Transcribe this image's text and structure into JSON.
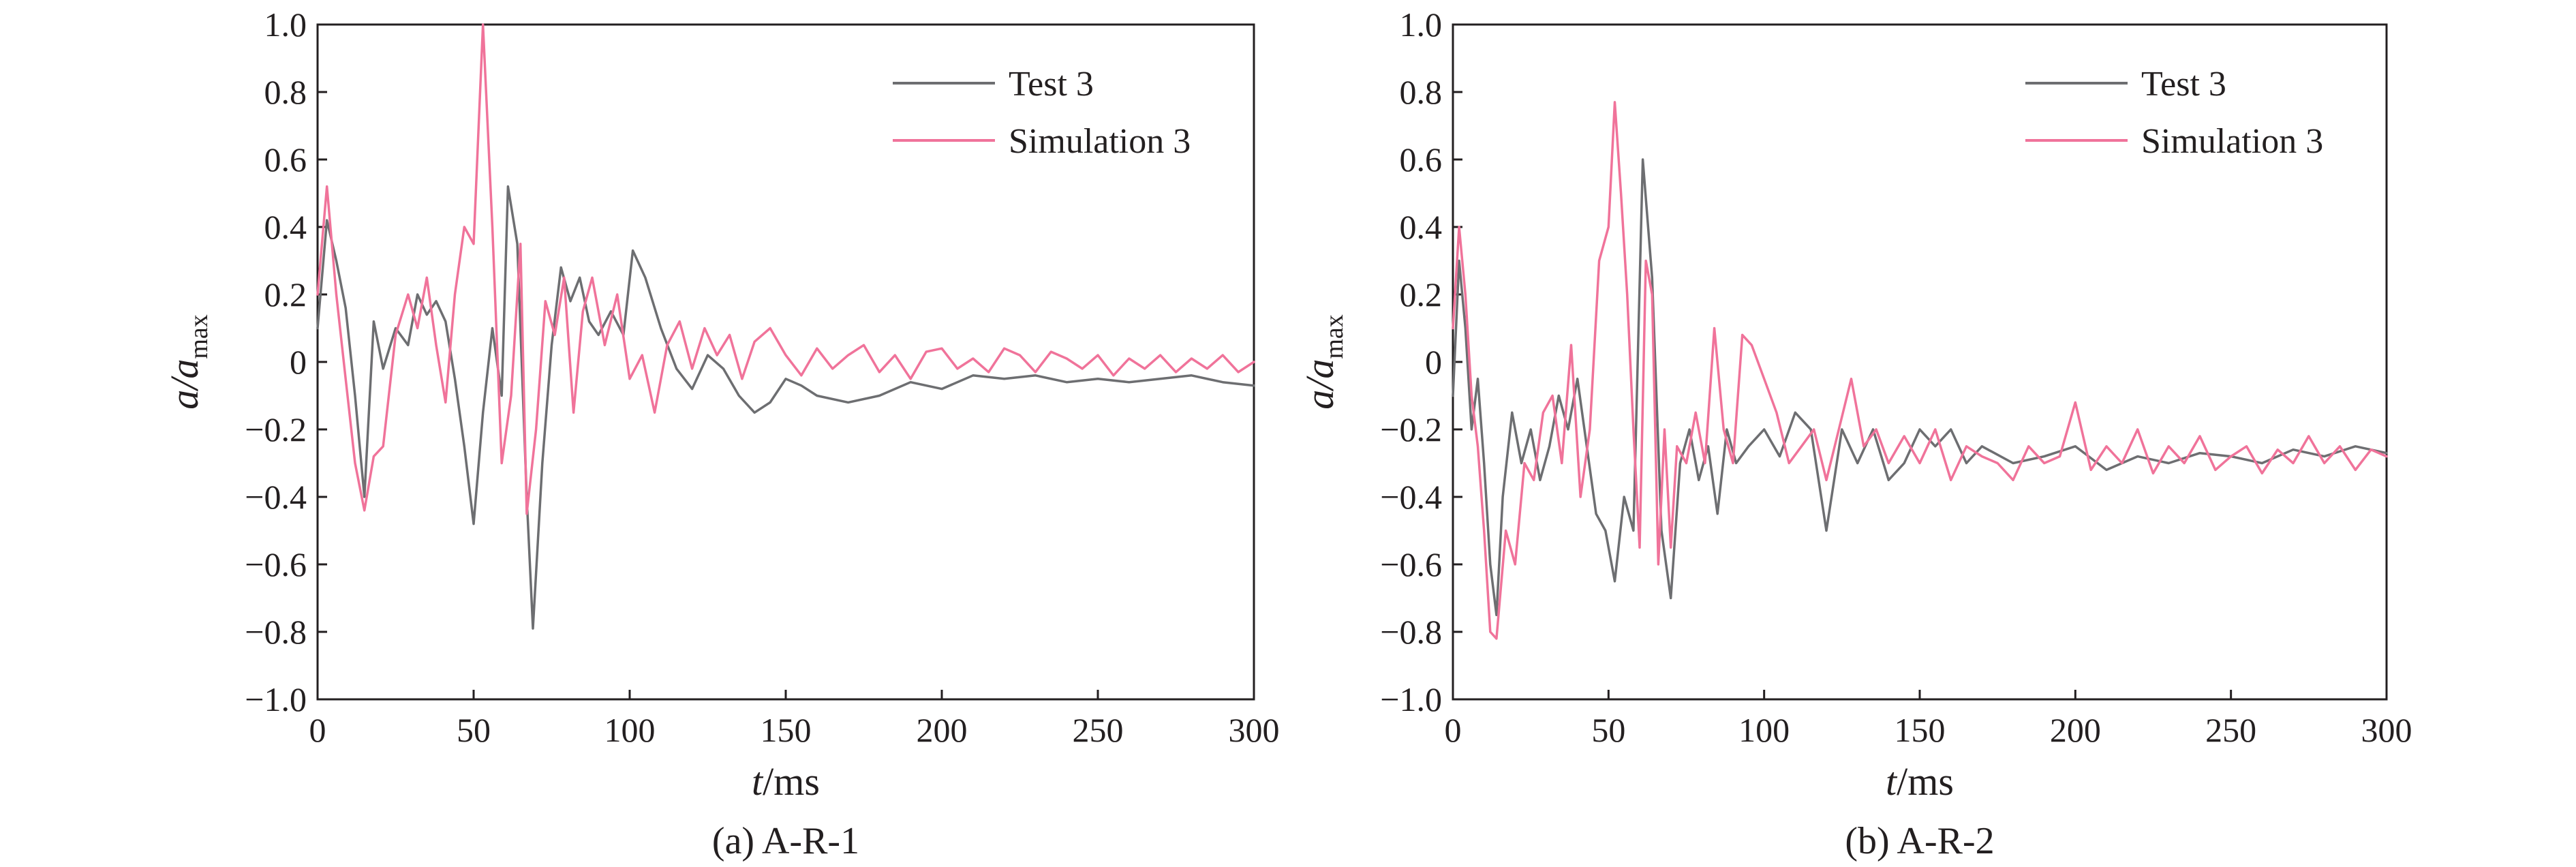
{
  "figure": {
    "panels": [
      {
        "caption": "(a) A-R-1",
        "ylabel_main": "a/a",
        "ylabel_sub": "max",
        "xlabel_main": "t",
        "xlabel_unit": "/ms"
      },
      {
        "caption": "(b) A-R-2",
        "ylabel_main": "a/a",
        "ylabel_sub": "max",
        "xlabel_main": "t",
        "xlabel_unit": "/ms"
      }
    ]
  },
  "chart_data": [
    {
      "type": "line",
      "title": "(a) A-R-1",
      "xlabel": "t/ms",
      "ylabel": "a/a_max",
      "xlim": [
        0,
        300
      ],
      "ylim": [
        -1.0,
        1.0
      ],
      "xticks": [
        "0",
        "50",
        "100",
        "150",
        "200",
        "250",
        "300"
      ],
      "yticks": [
        "1.0",
        "0.8",
        "0.6",
        "0.4",
        "0.2",
        "0",
        "−0.2",
        "−0.4",
        "−0.6",
        "−0.8",
        "−1.0"
      ],
      "grid": false,
      "legend_position": "top-right",
      "series": [
        {
          "name": "Test 3",
          "color": "#6d6e71",
          "x": [
            0,
            3,
            6,
            9,
            12,
            15,
            18,
            21,
            25,
            29,
            32,
            35,
            38,
            41,
            44,
            47,
            50,
            53,
            56,
            59,
            61,
            64,
            67,
            69,
            72,
            75,
            78,
            81,
            84,
            87,
            90,
            94,
            98,
            101,
            105,
            110,
            115,
            120,
            125,
            130,
            135,
            140,
            145,
            150,
            155,
            160,
            170,
            180,
            190,
            200,
            210,
            220,
            230,
            240,
            250,
            260,
            270,
            280,
            290,
            300
          ],
          "y": [
            0.1,
            0.42,
            0.3,
            0.16,
            -0.1,
            -0.4,
            0.12,
            -0.02,
            0.1,
            0.05,
            0.2,
            0.14,
            0.18,
            0.12,
            -0.05,
            -0.25,
            -0.48,
            -0.15,
            0.1,
            -0.1,
            0.52,
            0.35,
            -0.4,
            -0.79,
            -0.3,
            0.05,
            0.28,
            0.18,
            0.25,
            0.12,
            0.08,
            0.15,
            0.08,
            0.33,
            0.25,
            0.1,
            -0.02,
            -0.08,
            0.02,
            -0.02,
            -0.1,
            -0.15,
            -0.12,
            -0.05,
            -0.07,
            -0.1,
            -0.12,
            -0.1,
            -0.06,
            -0.08,
            -0.04,
            -0.05,
            -0.04,
            -0.06,
            -0.05,
            -0.06,
            -0.05,
            -0.04,
            -0.06,
            -0.07
          ]
        },
        {
          "name": "Simulation 3",
          "color": "#f0739a",
          "x": [
            0,
            3,
            6,
            9,
            12,
            15,
            18,
            21,
            25,
            29,
            32,
            35,
            38,
            41,
            44,
            47,
            50,
            53,
            56,
            59,
            62,
            65,
            67,
            70,
            73,
            76,
            79,
            82,
            85,
            88,
            92,
            96,
            100,
            104,
            108,
            112,
            116,
            120,
            124,
            128,
            132,
            136,
            140,
            145,
            150,
            155,
            160,
            165,
            170,
            175,
            180,
            185,
            190,
            195,
            200,
            205,
            210,
            215,
            220,
            225,
            230,
            235,
            240,
            245,
            250,
            255,
            260,
            265,
            270,
            275,
            280,
            285,
            290,
            295,
            300
          ],
          "y": [
            0.2,
            0.52,
            0.2,
            -0.05,
            -0.3,
            -0.44,
            -0.28,
            -0.25,
            0.08,
            0.2,
            0.1,
            0.25,
            0.05,
            -0.12,
            0.2,
            0.4,
            0.35,
            1.0,
            0.4,
            -0.3,
            -0.1,
            0.35,
            -0.45,
            -0.2,
            0.18,
            0.08,
            0.25,
            -0.15,
            0.15,
            0.25,
            0.05,
            0.2,
            -0.05,
            0.02,
            -0.15,
            0.05,
            0.12,
            -0.02,
            0.1,
            0.02,
            0.08,
            -0.05,
            0.06,
            0.1,
            0.02,
            -0.04,
            0.04,
            -0.02,
            0.02,
            0.05,
            -0.03,
            0.02,
            -0.05,
            0.03,
            0.04,
            -0.02,
            0.01,
            -0.03,
            0.04,
            0.02,
            -0.03,
            0.03,
            0.01,
            -0.02,
            0.02,
            -0.04,
            0.01,
            -0.02,
            0.02,
            -0.03,
            0.01,
            -0.02,
            0.02,
            -0.03,
            0.0
          ]
        }
      ]
    },
    {
      "type": "line",
      "title": "(b) A-R-2",
      "xlabel": "t/ms",
      "ylabel": "a/a_max",
      "xlim": [
        0,
        300
      ],
      "ylim": [
        -1.0,
        1.0
      ],
      "xticks": [
        "0",
        "50",
        "100",
        "150",
        "200",
        "250",
        "300"
      ],
      "yticks": [
        "1.0",
        "0.8",
        "0.6",
        "0.4",
        "0.2",
        "0",
        "−0.2",
        "−0.4",
        "−0.6",
        "−0.8",
        "−1.0"
      ],
      "grid": false,
      "legend_position": "top-right",
      "series": [
        {
          "name": "Test 3",
          "color": "#6d6e71",
          "x": [
            0,
            2,
            4,
            6,
            8,
            10,
            12,
            14,
            16,
            19,
            22,
            25,
            28,
            31,
            34,
            37,
            40,
            43,
            46,
            49,
            52,
            55,
            58,
            61,
            64,
            67,
            70,
            73,
            76,
            79,
            82,
            85,
            88,
            91,
            95,
            100,
            105,
            110,
            115,
            120,
            125,
            130,
            135,
            140,
            145,
            150,
            155,
            160,
            165,
            170,
            180,
            190,
            200,
            210,
            220,
            230,
            240,
            250,
            260,
            270,
            280,
            290,
            300
          ],
          "y": [
            -0.1,
            0.3,
            0.1,
            -0.2,
            -0.05,
            -0.3,
            -0.6,
            -0.75,
            -0.4,
            -0.15,
            -0.3,
            -0.2,
            -0.35,
            -0.25,
            -0.1,
            -0.2,
            -0.05,
            -0.25,
            -0.45,
            -0.5,
            -0.65,
            -0.4,
            -0.5,
            0.6,
            0.25,
            -0.5,
            -0.7,
            -0.3,
            -0.2,
            -0.35,
            -0.25,
            -0.45,
            -0.2,
            -0.3,
            -0.25,
            -0.2,
            -0.28,
            -0.15,
            -0.2,
            -0.5,
            -0.2,
            -0.3,
            -0.2,
            -0.35,
            -0.3,
            -0.2,
            -0.25,
            -0.2,
            -0.3,
            -0.25,
            -0.3,
            -0.28,
            -0.25,
            -0.32,
            -0.28,
            -0.3,
            -0.27,
            -0.28,
            -0.3,
            -0.26,
            -0.28,
            -0.25,
            -0.27
          ]
        },
        {
          "name": "Simulation 3",
          "color": "#f0739a",
          "x": [
            0,
            2,
            4,
            6,
            8,
            10,
            12,
            14,
            17,
            20,
            23,
            26,
            29,
            32,
            35,
            38,
            41,
            44,
            47,
            50,
            52,
            54,
            56,
            58,
            60,
            62,
            64,
            66,
            68,
            70,
            72,
            75,
            78,
            81,
            84,
            87,
            90,
            93,
            96,
            100,
            104,
            108,
            112,
            116,
            120,
            124,
            128,
            132,
            136,
            140,
            145,
            150,
            155,
            160,
            165,
            170,
            175,
            180,
            185,
            190,
            195,
            200,
            205,
            210,
            215,
            220,
            225,
            230,
            235,
            240,
            245,
            250,
            255,
            260,
            265,
            270,
            275,
            280,
            285,
            290,
            295,
            300
          ],
          "y": [
            0.1,
            0.4,
            0.2,
            -0.1,
            -0.25,
            -0.5,
            -0.8,
            -0.82,
            -0.5,
            -0.6,
            -0.3,
            -0.35,
            -0.15,
            -0.1,
            -0.3,
            0.05,
            -0.4,
            -0.2,
            0.3,
            0.4,
            0.77,
            0.5,
            0.2,
            -0.2,
            -0.55,
            0.3,
            0.2,
            -0.6,
            -0.2,
            -0.55,
            -0.25,
            -0.3,
            -0.15,
            -0.3,
            0.1,
            -0.2,
            -0.3,
            0.08,
            0.05,
            -0.05,
            -0.15,
            -0.3,
            -0.25,
            -0.2,
            -0.35,
            -0.2,
            -0.05,
            -0.25,
            -0.2,
            -0.3,
            -0.22,
            -0.3,
            -0.2,
            -0.35,
            -0.25,
            -0.28,
            -0.3,
            -0.35,
            -0.25,
            -0.3,
            -0.28,
            -0.12,
            -0.32,
            -0.25,
            -0.3,
            -0.2,
            -0.33,
            -0.25,
            -0.3,
            -0.22,
            -0.32,
            -0.28,
            -0.25,
            -0.33,
            -0.26,
            -0.3,
            -0.22,
            -0.3,
            -0.25,
            -0.32,
            -0.26,
            -0.28
          ]
        }
      ]
    }
  ]
}
